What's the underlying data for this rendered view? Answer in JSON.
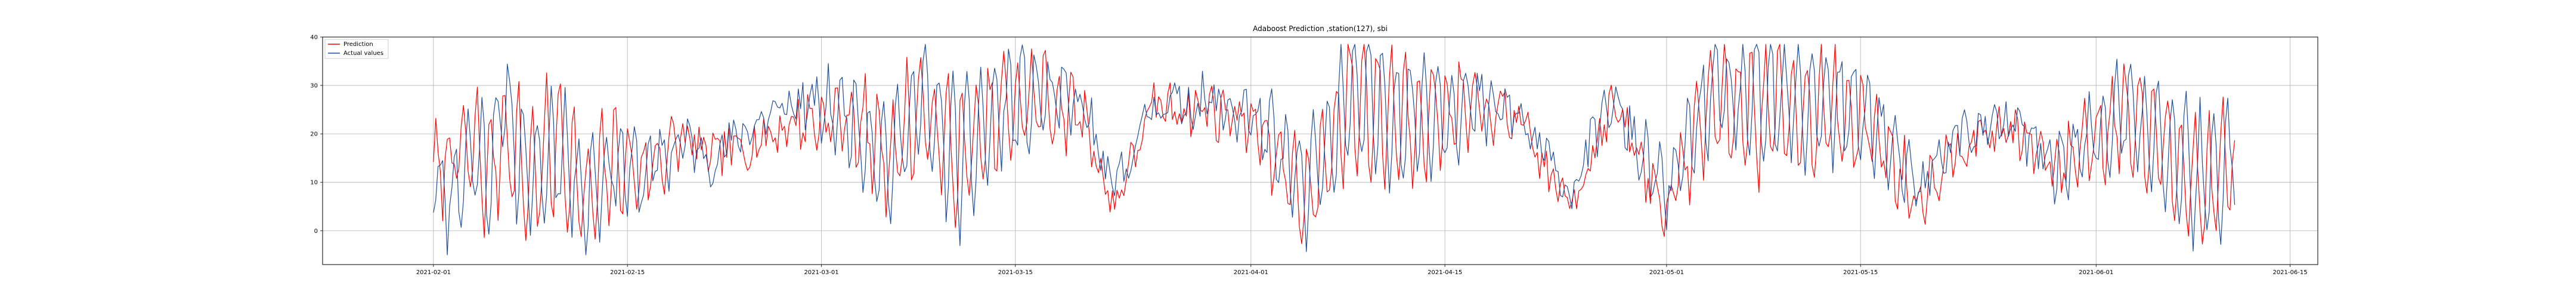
{
  "chart_data": {
    "type": "line",
    "title": "Adaboost Prediction ,station(127), sbi",
    "xlabel": "",
    "ylabel": "",
    "x_range": [
      "2021-01-24",
      "2021-06-17"
    ],
    "x_start": "2021-02-01",
    "x_end": "2021-06-11",
    "ylim": [
      -7,
      40
    ],
    "x_ticks": [
      "2021-02-01",
      "2021-02-15",
      "2021-03-01",
      "2021-03-15",
      "2021-04-01",
      "2021-04-15",
      "2021-05-01",
      "2021-05-15",
      "2021-06-01",
      "2021-06-15"
    ],
    "y_ticks": [
      0,
      10,
      20,
      30,
      40
    ],
    "grid": true,
    "legend_position": "top-left",
    "series": [
      {
        "name": "Prediction",
        "color": "#ff0000",
        "key_points": [
          [
            "2021-02-01",
            9
          ],
          [
            "2021-02-02",
            14
          ],
          [
            "2021-02-04",
            18
          ],
          [
            "2021-02-05",
            8
          ],
          [
            "2021-02-06",
            24
          ],
          [
            "2021-02-08",
            6
          ],
          [
            "2021-02-10",
            22
          ],
          [
            "2021-02-12",
            -2
          ],
          [
            "2021-02-14",
            14
          ],
          [
            "2021-02-16",
            9
          ],
          [
            "2021-02-19",
            22
          ],
          [
            "2021-02-21",
            15
          ],
          [
            "2021-02-24",
            20
          ],
          [
            "2021-02-27",
            28
          ],
          [
            "2021-03-03",
            30
          ],
          [
            "2021-03-06",
            15
          ],
          [
            "2021-03-08",
            33
          ],
          [
            "2021-03-11",
            14
          ],
          [
            "2021-03-14",
            32
          ],
          [
            "2021-03-17",
            37
          ],
          [
            "2021-03-20",
            30
          ],
          [
            "2021-03-22",
            -4
          ],
          [
            "2021-03-25",
            34
          ],
          [
            "2021-03-29",
            33
          ],
          [
            "2021-04-01",
            30
          ],
          [
            "2021-04-05",
            -3
          ],
          [
            "2021-04-08",
            36
          ],
          [
            "2021-04-12",
            30
          ],
          [
            "2021-04-16",
            33
          ],
          [
            "2021-04-20",
            30
          ],
          [
            "2021-04-24",
            -4
          ],
          [
            "2021-04-27",
            35
          ],
          [
            "2021-05-01",
            -5
          ],
          [
            "2021-05-04",
            35
          ],
          [
            "2021-05-08",
            32
          ],
          [
            "2021-05-12",
            33
          ],
          [
            "2021-05-16",
            25
          ],
          [
            "2021-05-19",
            -1
          ],
          [
            "2021-05-22",
            20
          ],
          [
            "2021-05-26",
            26
          ],
          [
            "2021-05-29",
            10
          ],
          [
            "2021-06-01",
            24
          ],
          [
            "2021-06-03",
            31
          ],
          [
            "2021-06-06",
            18
          ],
          [
            "2021-06-09",
            2
          ],
          [
            "2021-06-11",
            15
          ]
        ]
      },
      {
        "name": "Actual values",
        "color": "#1f4e9a",
        "key_points": [
          [
            "2021-02-01",
            11
          ],
          [
            "2021-02-02",
            -1
          ],
          [
            "2021-02-04",
            17
          ],
          [
            "2021-02-05",
            10
          ],
          [
            "2021-02-06",
            36
          ],
          [
            "2021-02-08",
            5
          ],
          [
            "2021-02-10",
            20
          ],
          [
            "2021-02-12",
            1
          ],
          [
            "2021-02-14",
            13
          ],
          [
            "2021-02-16",
            8
          ],
          [
            "2021-02-19",
            21
          ],
          [
            "2021-02-21",
            14
          ],
          [
            "2021-02-24",
            27
          ],
          [
            "2021-02-27",
            35
          ],
          [
            "2021-03-03",
            31
          ],
          [
            "2021-03-06",
            12
          ],
          [
            "2021-03-08",
            38
          ],
          [
            "2021-03-11",
            13
          ],
          [
            "2021-03-14",
            34
          ],
          [
            "2021-03-17",
            38
          ],
          [
            "2021-03-20",
            33
          ],
          [
            "2021-03-22",
            1
          ],
          [
            "2021-03-25",
            35
          ],
          [
            "2021-03-29",
            35
          ],
          [
            "2021-04-01",
            31
          ],
          [
            "2021-04-05",
            2
          ],
          [
            "2021-04-08",
            37
          ],
          [
            "2021-04-12",
            31
          ],
          [
            "2021-04-16",
            34
          ],
          [
            "2021-04-20",
            32
          ],
          [
            "2021-04-24",
            2
          ],
          [
            "2021-04-27",
            36
          ],
          [
            "2021-05-01",
            0
          ],
          [
            "2021-05-04",
            38
          ],
          [
            "2021-05-08",
            36
          ],
          [
            "2021-05-12",
            36
          ],
          [
            "2021-05-16",
            29
          ],
          [
            "2021-05-19",
            1
          ],
          [
            "2021-05-22",
            24
          ],
          [
            "2021-05-26",
            27
          ],
          [
            "2021-05-29",
            12
          ],
          [
            "2021-06-01",
            22
          ],
          [
            "2021-06-03",
            32
          ],
          [
            "2021-06-06",
            19
          ],
          [
            "2021-06-09",
            5
          ],
          [
            "2021-06-11",
            17
          ]
        ]
      }
    ]
  }
}
